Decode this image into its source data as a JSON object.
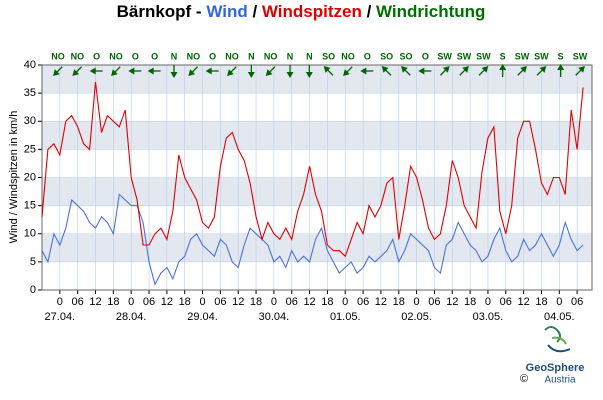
{
  "chart_data": {
    "type": "line",
    "title_parts": [
      {
        "text": "Bärnkopf - ",
        "color": "#000000"
      },
      {
        "text": "Wind",
        "color": "#3366dd"
      },
      {
        "text": " / ",
        "color": "#000000"
      },
      {
        "text": "Windspitzen",
        "color": "#e00000"
      },
      {
        "text": " / ",
        "color": "#000000"
      },
      {
        "text": "Windrichtung",
        "color": "#007000"
      }
    ],
    "y_label": "Wind / Windspitzen in km/h",
    "x": [
      -6,
      -4,
      -2,
      0,
      2,
      4,
      6,
      8,
      10,
      12,
      14,
      16,
      18,
      20,
      22,
      24,
      26,
      28,
      30,
      32,
      34,
      36,
      38,
      40,
      42,
      44,
      46,
      48,
      50,
      52,
      54,
      56,
      58,
      60,
      62,
      64,
      66,
      68,
      70,
      72,
      74,
      76,
      78,
      80,
      82,
      84,
      86,
      88,
      90,
      92,
      94,
      96,
      98,
      100,
      102,
      104,
      106,
      108,
      110,
      112,
      114,
      116,
      118,
      120,
      122,
      124,
      126,
      128,
      130,
      132,
      134,
      136,
      138,
      140,
      142,
      144,
      146,
      148,
      150,
      152,
      154,
      156,
      158,
      160,
      162,
      164,
      166,
      168,
      170,
      172,
      174,
      176
    ],
    "series": [
      {
        "name": "Windspitzen",
        "color": "#e00000",
        "values": [
          13,
          25,
          26,
          24,
          30,
          31,
          29,
          26,
          25,
          37,
          28,
          31,
          30,
          29,
          32,
          20,
          16,
          8,
          8,
          10,
          11,
          9,
          14,
          24,
          20,
          18,
          16,
          12,
          11,
          13,
          22,
          27,
          28,
          25,
          23,
          19,
          13,
          9,
          12,
          10,
          9,
          11,
          9,
          14,
          17,
          22,
          17,
          14,
          8,
          7,
          7,
          6,
          9,
          12,
          10,
          15,
          13,
          15,
          19,
          20,
          9,
          15,
          22,
          20,
          16,
          11,
          9,
          10,
          15,
          23,
          20,
          15,
          13,
          11,
          21,
          27,
          29,
          14,
          10,
          15,
          27,
          30,
          30,
          25,
          19,
          17,
          20,
          20,
          17,
          32,
          25,
          36
        ]
      },
      {
        "name": "Wind",
        "color": "#4a72dc",
        "values": [
          7,
          5,
          10,
          8,
          11,
          16,
          15,
          14,
          12,
          11,
          13,
          12,
          10,
          17,
          16,
          15,
          15,
          12,
          5,
          1,
          3,
          4,
          2,
          5,
          6,
          9,
          10,
          8,
          7,
          6,
          9,
          8,
          5,
          4,
          8,
          11,
          10,
          9,
          8,
          5,
          6,
          4,
          7,
          5,
          6,
          5,
          9,
          11,
          7,
          5,
          3,
          4,
          5,
          3,
          4,
          6,
          5,
          6,
          7,
          9,
          5,
          7,
          10,
          9,
          8,
          7,
          4,
          3,
          8,
          9,
          12,
          10,
          8,
          7,
          5,
          6,
          9,
          11,
          7,
          5,
          6,
          9,
          7,
          8,
          10,
          8,
          6,
          8,
          12,
          9,
          7,
          8
        ]
      }
    ],
    "xlim": [
      -6,
      179
    ],
    "ylim": [
      0,
      40
    ],
    "yticks": [
      0,
      5,
      10,
      15,
      20,
      25,
      30,
      35,
      40
    ],
    "xticks": [
      0,
      {
        "value": 6,
        "label": "06"
      },
      {
        "value": 12,
        "label": "12"
      },
      {
        "value": 18,
        "label": "18"
      },
      {
        "value": 24,
        "label": "0"
      },
      {
        "value": 30,
        "label": "06"
      },
      {
        "value": 36,
        "label": "12"
      },
      {
        "value": 42,
        "label": "18"
      },
      {
        "value": 48,
        "label": "0"
      },
      {
        "value": 54,
        "label": "06"
      },
      {
        "value": 60,
        "label": "12"
      },
      {
        "value": 66,
        "label": "18"
      },
      {
        "value": 72,
        "label": "0"
      },
      {
        "value": 78,
        "label": "06"
      },
      {
        "value": 84,
        "label": "12"
      },
      {
        "value": 90,
        "label": "18"
      },
      {
        "value": 96,
        "label": "0"
      },
      {
        "value": 102,
        "label": "06"
      },
      {
        "value": 108,
        "label": "12"
      },
      {
        "value": 114,
        "label": "18"
      },
      {
        "value": 120,
        "label": "0"
      },
      {
        "value": 126,
        "label": "06"
      },
      {
        "value": 132,
        "label": "12"
      },
      {
        "value": 138,
        "label": "18"
      },
      {
        "value": 144,
        "label": "0"
      },
      {
        "value": 150,
        "label": "06"
      },
      {
        "value": 156,
        "label": "12"
      },
      {
        "value": 162,
        "label": "18"
      },
      {
        "value": 168,
        "label": "0"
      },
      {
        "value": 174,
        "label": "06"
      }
    ],
    "day_labels": [
      {
        "value": 0,
        "label": "27.04."
      },
      {
        "value": 24,
        "label": "28.04."
      },
      {
        "value": 48,
        "label": "29.04."
      },
      {
        "value": 72,
        "label": "30.04."
      },
      {
        "value": 96,
        "label": "01.05."
      },
      {
        "value": 120,
        "label": "02.05."
      },
      {
        "value": 144,
        "label": "03.05."
      },
      {
        "value": 168,
        "label": "04.05."
      }
    ],
    "wind_direction": [
      "NO",
      "NO",
      "O",
      "NO",
      "O",
      "O",
      "N",
      "NO",
      "O",
      "NO",
      "N",
      "NO",
      "N",
      "N",
      "SO",
      "NO",
      "O",
      "SO",
      "SO",
      "O",
      "SW",
      "SW",
      "SW",
      "S",
      "SW",
      "SW",
      "S",
      "SW"
    ],
    "grid": true,
    "band_color": "#e3e8f0",
    "grid_color": "#b8cde8"
  },
  "logo": {
    "name": "GeoSphere",
    "sub": "Austria",
    "copyright": "©"
  }
}
